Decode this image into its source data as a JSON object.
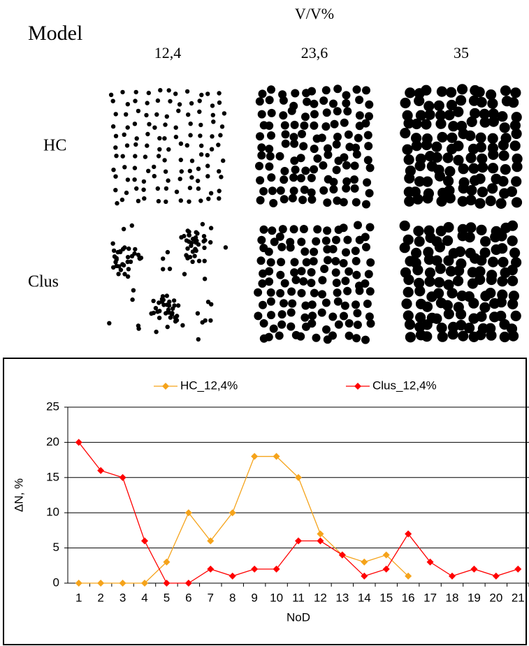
{
  "panel": {
    "row_header": "Model",
    "column_header": "V/V%",
    "columns": [
      "12,4",
      "23,6",
      "35"
    ],
    "rows": [
      "HC",
      "Clus"
    ]
  },
  "chart_data": {
    "type": "line",
    "categories": [
      "1",
      "2",
      "3",
      "4",
      "5",
      "6",
      "7",
      "8",
      "9",
      "10",
      "11",
      "12",
      "13",
      "14",
      "15",
      "16",
      "17",
      "18",
      "19",
      "20",
      "21"
    ],
    "series": [
      {
        "name": "HC_12,4%",
        "color": "#f5a31a",
        "values": [
          0,
          0,
          0,
          0,
          3,
          10,
          6,
          10,
          18,
          18,
          15,
          7,
          4,
          3,
          4,
          1,
          null,
          null,
          null,
          null,
          null
        ]
      },
      {
        "name": "Clus_12,4%",
        "color": "#ff0000",
        "values": [
          20,
          16,
          15,
          6,
          0,
          0,
          2,
          1,
          2,
          2,
          6,
          6,
          4,
          1,
          2,
          7,
          3,
          1,
          2,
          1,
          2
        ]
      }
    ],
    "x_label": "NoD",
    "y_label": "ΔN, %",
    "ylim": [
      0,
      25
    ],
    "yticks": [
      0,
      5,
      10,
      15,
      20,
      25
    ],
    "grid": true,
    "legend": "top"
  }
}
